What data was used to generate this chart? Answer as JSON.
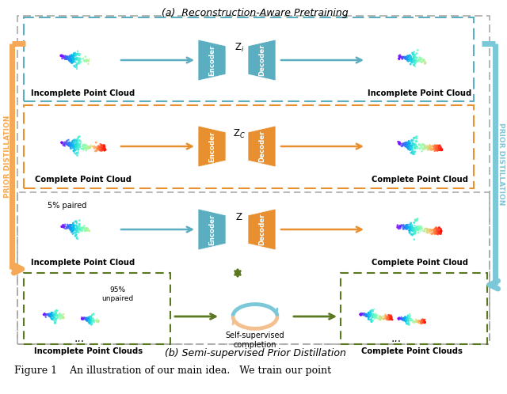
{
  "title_a": "(a)  Reconstruction-Aware Pretraining",
  "title_b": "(b) Semi-supervised Prior Distillation",
  "caption": "Figure 1    An illustration of our main idea.   We train our point",
  "bg_color": "#ffffff",
  "blue": "#7bc8d8",
  "blue_dark": "#5aaec0",
  "orange": "#f5a855",
  "orange_dark": "#e89030",
  "green_dark": "#5a7820",
  "gray_dash": "#aaaaaa",
  "row1_label_left": "Incomplete Point Cloud",
  "row1_label_right": "Incomplete Point Cloud",
  "row2_label_left": "Complete Point Cloud",
  "row2_label_right": "Complete Point Cloud",
  "row3_label_left": "Incomplete Point Cloud",
  "row3_label_right": "Complete Point Cloud",
  "row4_label_left": "Incomplete Point Clouds",
  "row4_label_right": "Complete Point Clouds",
  "row4_label_mid": "Self-supervised\ncompletion",
  "pct5_label": "5% paired",
  "pct95_label": "95%\nunpaired",
  "prior_dist_text": "PRIOR DISTILLATION",
  "fig_width": 6.4,
  "fig_height": 4.98
}
